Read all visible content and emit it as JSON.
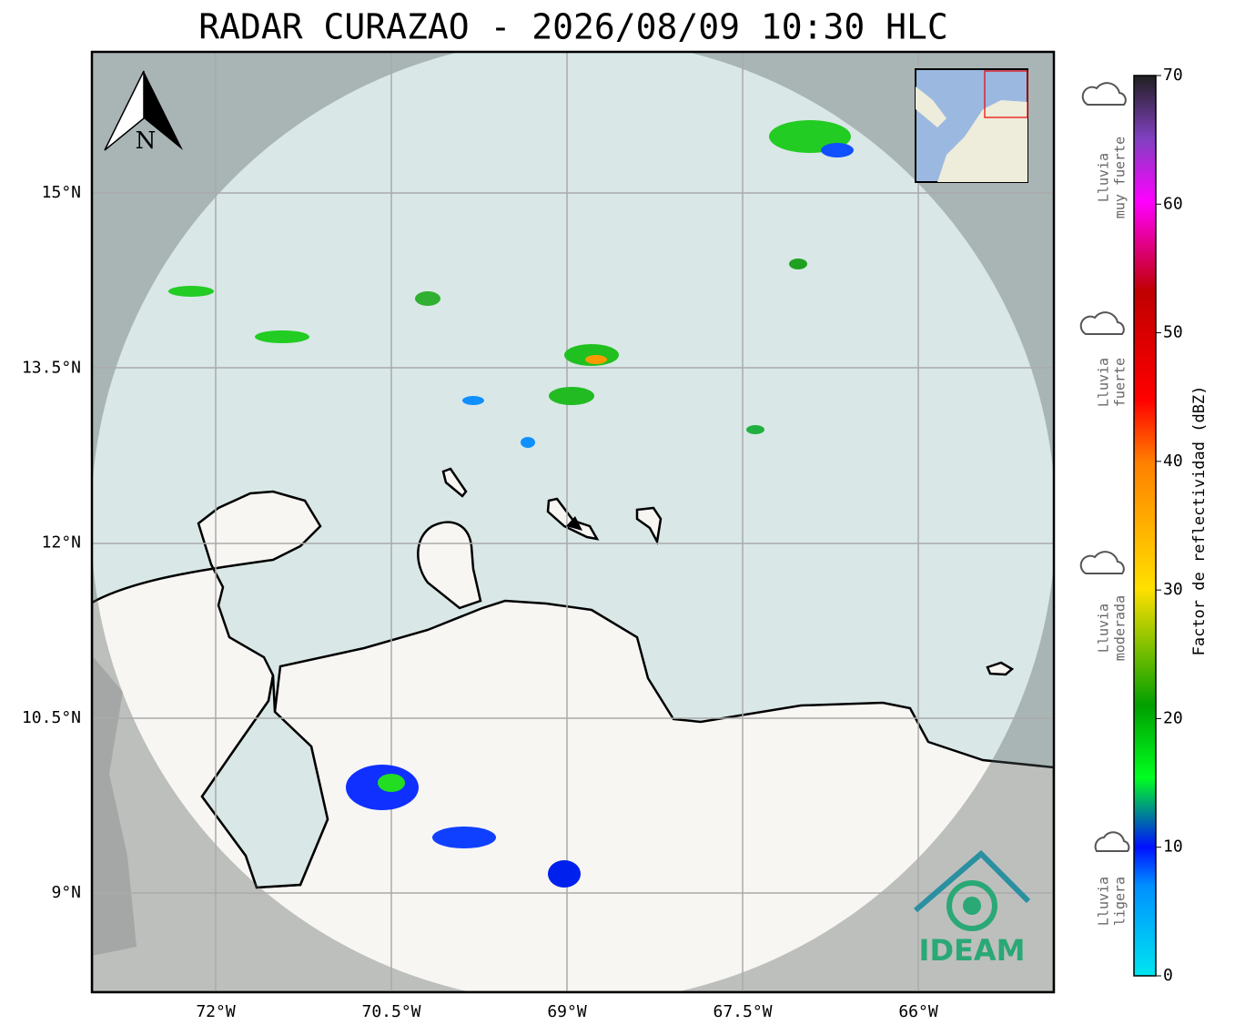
{
  "header": {
    "title": "RADAR CURAZAO - 2026/08/09 10:30 HLC"
  },
  "map": {
    "north_label": "N",
    "lat_labels": [
      "15°N",
      "13.5°N",
      "12°N",
      "10.5°N",
      "9°N"
    ],
    "lon_labels": [
      "72°W",
      "70.5°W",
      "69°W",
      "67.5°W",
      "66°W"
    ],
    "logo_text": "IDEAM"
  },
  "colorbar": {
    "label": "Factor de reflectividad (dBZ)",
    "ticks": [
      "70",
      "60",
      "50",
      "40",
      "30",
      "20",
      "10",
      "0"
    ]
  },
  "legend": {
    "items": [
      [
        "Lluvia",
        "muy fuerte"
      ],
      [
        "Lluvia",
        "fuerte"
      ],
      [
        "Lluvia",
        "moderada"
      ],
      [
        "Lluvia",
        "ligera"
      ]
    ]
  }
}
